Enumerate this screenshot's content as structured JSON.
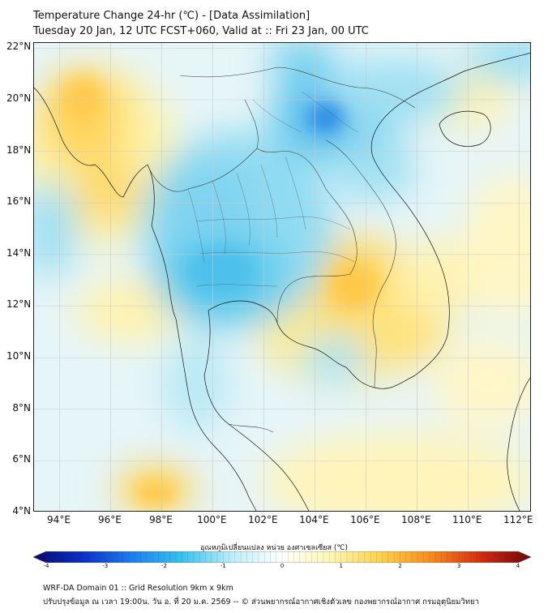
{
  "header": {
    "title": "Temperature Change 24-hr (℃) - [Data Assimilation]",
    "subtitle": "Tuesday 20 Jan, 12 UTC FCST+060, Valid at :: Fri 23 Jan, 00 UTC"
  },
  "map": {
    "lon_range": [
      93,
      112.5
    ],
    "lat_range": [
      4,
      22.2
    ],
    "lat_labels": [
      "22°N",
      "20°N",
      "18°N",
      "16°N",
      "14°N",
      "12°N",
      "10°N",
      "8°N",
      "6°N",
      "4°N"
    ],
    "lat_values": [
      22,
      20,
      18,
      16,
      14,
      12,
      10,
      8,
      6,
      4
    ],
    "lon_labels": [
      "94°E",
      "96°E",
      "98°E",
      "100°E",
      "102°E",
      "104°E",
      "106°E",
      "108°E",
      "110°E",
      "112°E"
    ],
    "lon_values": [
      94,
      96,
      98,
      100,
      102,
      104,
      106,
      108,
      110,
      112
    ]
  },
  "colorbar": {
    "title": "อุณหภูมิเปลี่ยนแปลง หน่วย องศาเซลเซียส (℃)",
    "min": -4,
    "max": 4,
    "tick_labels": [
      "-4",
      "-3",
      "-2",
      "-1",
      "0",
      "1",
      "2",
      "3",
      "4"
    ],
    "colors": [
      "#08086b",
      "#0a2fc9",
      "#1e7ff0",
      "#36c3ef",
      "#bdeefa",
      "#ffffff",
      "#fff6b0",
      "#ffd04a",
      "#f78a1e",
      "#d42a10",
      "#6b0808"
    ]
  },
  "footer": {
    "line1": "WRF-DA Domain 01 :: Grid Resolution 9km x 9km",
    "line2": "ปรับปรุงข้อมูล ณ เวลา 19:00น. วัน อ. ที่ 20 ม.ค. 2569 -- © ส่วนพยากรณ์อากาศเชิงตัวเลข กองพยากรณ์อากาศ กรมอุตุนิยมวิทยา"
  }
}
